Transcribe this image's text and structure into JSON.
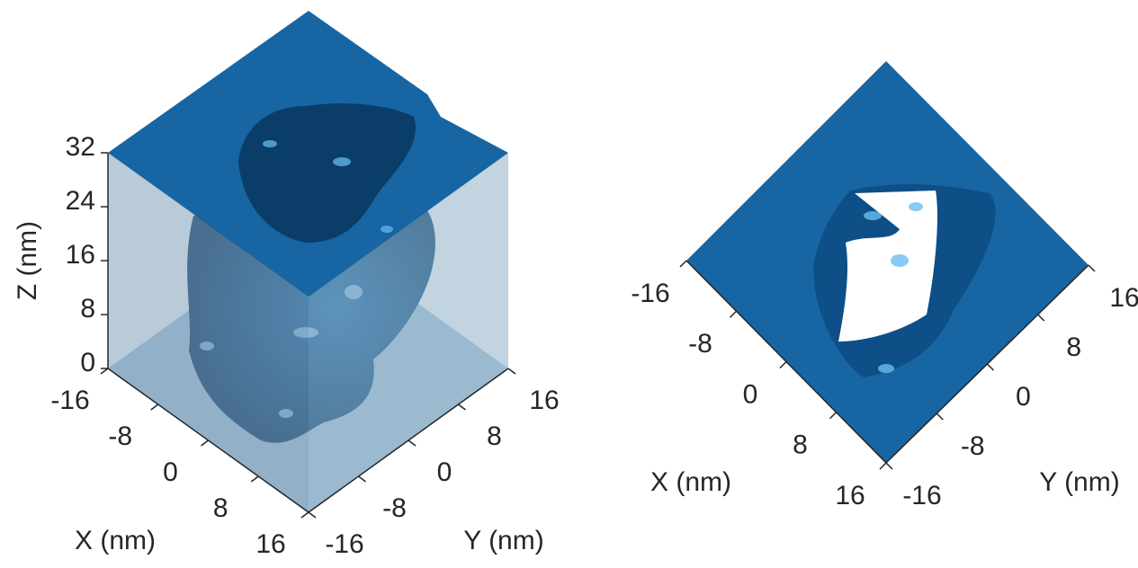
{
  "chart_data": [
    {
      "type": "surface3d",
      "xlabel": "X (nm)",
      "ylabel": "Y (nm)",
      "zlabel": "Z (nm)",
      "xlim": [
        -16,
        16
      ],
      "ylim": [
        -16,
        16
      ],
      "zlim": [
        0,
        32
      ],
      "xticks": [
        -16,
        -8,
        0,
        8,
        16
      ],
      "yticks": [
        -16,
        -8,
        0,
        8,
        16
      ],
      "zticks": [
        0,
        8,
        16,
        24,
        32
      ],
      "color": "#0e5c9a"
    },
    {
      "type": "surface-top",
      "xlabel": "X (nm)",
      "ylabel": "Y (nm)",
      "xlim": [
        -16,
        16
      ],
      "ylim": [
        -16,
        16
      ],
      "xticks": [
        -16,
        -8,
        0,
        8,
        16
      ],
      "yticks": [
        -16,
        -8,
        0,
        8,
        16
      ],
      "color": "#1765a3"
    }
  ]
}
